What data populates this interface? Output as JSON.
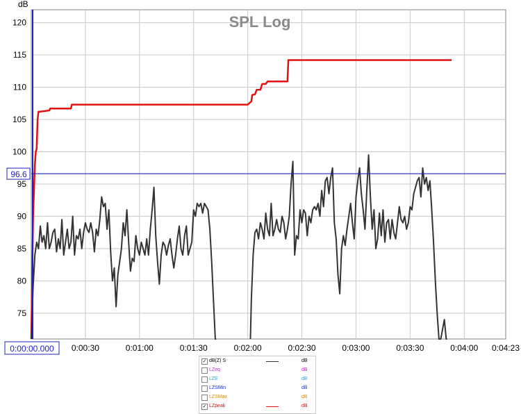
{
  "chart_data": {
    "type": "line",
    "title": "SPL Log",
    "ylabel": "dB",
    "xlabel": "",
    "xlim_seconds": [
      0,
      263
    ],
    "ylim": [
      71,
      122
    ],
    "grid": true,
    "y_ticks": [
      "120",
      "115",
      "110",
      "105",
      "100",
      "95",
      "90",
      "85",
      "80",
      "75"
    ],
    "y_tick_values": [
      120,
      115,
      110,
      105,
      100,
      95,
      90,
      85,
      80,
      75
    ],
    "x_ticks": [
      "0:00:00.000",
      "0:00:30",
      "0:01:00",
      "0:01:30",
      "0:02:00",
      "0:02:30",
      "0:03:00",
      "0:03:30",
      "0:04:00",
      "0:04:23"
    ],
    "x_tick_values": [
      0,
      30,
      60,
      90,
      120,
      150,
      180,
      210,
      240,
      263
    ],
    "cursor": {
      "value": 96.6,
      "label": "96.6"
    },
    "series": [
      {
        "name": "LZpeak",
        "color": "#e01010",
        "x": [
          0,
          1,
          1.5,
          2,
          2.5,
          3,
          3.5,
          4,
          5,
          10,
          10.5,
          22,
          22.5,
          120,
          122,
          122.5,
          124,
          125,
          126,
          127,
          128,
          130,
          131,
          142,
          142.5,
          149,
          149.5,
          233
        ],
        "y": [
          71,
          90,
          94,
          98,
          100,
          100.5,
          105,
          106.2,
          106.2,
          106.4,
          106.7,
          106.7,
          107.3,
          107.3,
          107.8,
          108.8,
          108.9,
          109.6,
          109.6,
          109.6,
          110.5,
          110.5,
          110.9,
          110.9,
          114.2,
          114.2,
          114.2,
          114.2
        ]
      },
      {
        "name": "dB(Z) S",
        "color": "#333333",
        "x": [
          0,
          1,
          2,
          3,
          4,
          5,
          6,
          7,
          8,
          9,
          10,
          11,
          12,
          13,
          14,
          15,
          16,
          17,
          18,
          19,
          20,
          21,
          22,
          23,
          24,
          25,
          26,
          27,
          28,
          29,
          30,
          31,
          32,
          33,
          34,
          35,
          36,
          37,
          38,
          39,
          40,
          41,
          42,
          43,
          44,
          45,
          46,
          47,
          48,
          49,
          50,
          51,
          52,
          53,
          54,
          55,
          56,
          57,
          58,
          59,
          60,
          61,
          62,
          63,
          64,
          65,
          66,
          67,
          68,
          69,
          70,
          71,
          72,
          73,
          74,
          75,
          76,
          77,
          78,
          79,
          80,
          81,
          82,
          83,
          84,
          85,
          86,
          87,
          88,
          89,
          90,
          91,
          92,
          93,
          94,
          95,
          96,
          97,
          98,
          99,
          100,
          101,
          102,
          102.5
        ],
        "y": [
          71,
          79,
          84,
          86,
          85,
          88.5,
          86,
          87,
          85,
          89,
          85,
          86,
          87.5,
          88,
          84.5,
          86.5,
          85,
          89.5,
          84,
          86,
          88,
          85,
          86,
          90,
          84,
          87,
          86.5,
          88,
          85,
          87.5,
          89,
          88,
          87.5,
          89,
          87.5,
          84.5,
          88,
          87,
          89.5,
          93,
          91.5,
          92,
          88,
          91,
          84.5,
          80,
          82,
          76,
          81,
          83,
          85,
          89,
          87,
          91,
          86,
          81.5,
          83.5,
          83,
          87,
          85,
          84,
          86,
          85,
          84,
          86.5,
          84,
          88,
          91,
          94.5,
          87,
          83,
          79.5,
          84,
          86,
          85.5,
          84,
          85.5,
          86.5,
          84,
          82,
          84,
          86.5,
          88.5,
          85,
          84,
          87,
          88.5,
          84,
          85,
          86,
          91,
          90,
          92,
          91.5,
          92,
          90.5,
          92,
          91.5,
          91,
          88,
          83,
          77,
          71,
          71
        ]
      },
      {
        "name": "dB(Z) S",
        "color": "#333333",
        "x": [
          121.5,
          122,
          123,
          124,
          125,
          126,
          127,
          128,
          129,
          130,
          131,
          132,
          133,
          134,
          135,
          136,
          137,
          138,
          139,
          140,
          141,
          142,
          143,
          144,
          145,
          146,
          147,
          148,
          149,
          150,
          151,
          152,
          153,
          154,
          155,
          156,
          157,
          158,
          159,
          160,
          161,
          162,
          163,
          164,
          165,
          166,
          167,
          168,
          169,
          170,
          171,
          172,
          173,
          174,
          175,
          176,
          177,
          178,
          179,
          180,
          181,
          182,
          183,
          184,
          185,
          186,
          187,
          188,
          189,
          190,
          191,
          192,
          193,
          194,
          195,
          196,
          197,
          198,
          199,
          200,
          201,
          202,
          203,
          204,
          205,
          206,
          207,
          208,
          209,
          210,
          211,
          212,
          213,
          214,
          215,
          216,
          217,
          218,
          219,
          220,
          221,
          222,
          223,
          224,
          225,
          226,
          227,
          228,
          229,
          230,
          230.5
        ],
        "y": [
          71,
          77,
          84,
          87.5,
          88,
          86.5,
          89,
          88,
          86.5,
          90.5,
          88,
          87,
          92,
          87,
          88,
          89.5,
          88,
          87.5,
          90,
          89,
          86.5,
          88,
          90,
          95,
          98.5,
          84,
          87,
          86.5,
          91,
          89,
          91,
          90.5,
          87,
          90,
          89,
          91,
          91.5,
          91,
          92,
          90,
          94,
          91.5,
          95.5,
          96,
          93.5,
          96,
          97.5,
          89,
          86.5,
          81,
          78,
          85,
          87,
          85.5,
          88,
          90,
          92,
          89,
          86.5,
          93,
          95.5,
          97.5,
          93.5,
          91,
          88,
          94,
          99.5,
          93,
          88,
          91,
          85,
          86.5,
          90.5,
          87,
          91,
          86,
          89,
          89.5,
          86.5,
          89.5,
          87.5,
          86.5,
          89,
          91.5,
          89.5,
          89,
          90,
          88,
          89,
          91.5,
          91,
          93.5,
          94.5,
          95.5,
          96,
          93,
          97.5,
          95,
          96,
          94,
          95.5,
          91,
          86,
          80,
          75,
          71,
          71,
          72.5,
          74,
          71,
          71
        ]
      }
    ]
  },
  "legend": {
    "items": [
      {
        "label": "dB(Z) S",
        "unit": "dB",
        "checked": true,
        "check": "✓",
        "color": "#000000",
        "line_color": "#333333",
        "show_line": true
      },
      {
        "label": "LZeq",
        "unit": "dB",
        "checked": false,
        "check": "",
        "color": "#d020d0",
        "line_color": "",
        "show_line": false
      },
      {
        "label": "LZE",
        "unit": "dB",
        "checked": false,
        "check": "",
        "color": "#2aa8c8",
        "line_color": "",
        "show_line": false
      },
      {
        "label": "LZSMin",
        "unit": "dB",
        "checked": false,
        "check": "",
        "color": "#1a30c0",
        "line_color": "",
        "show_line": false
      },
      {
        "label": "LZSMax",
        "unit": "dB",
        "checked": false,
        "check": "",
        "color": "#d08a10",
        "line_color": "",
        "show_line": false
      },
      {
        "label": "LZpeak",
        "unit": "dB",
        "checked": true,
        "check": "✓",
        "color": "#d01010",
        "line_color": "#e01010",
        "show_line": true
      }
    ]
  }
}
